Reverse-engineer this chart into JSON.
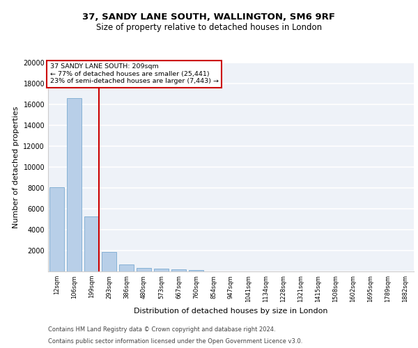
{
  "title1": "37, SANDY LANE SOUTH, WALLINGTON, SM6 9RF",
  "title2": "Size of property relative to detached houses in London",
  "xlabel": "Distribution of detached houses by size in London",
  "ylabel": "Number of detached properties",
  "footer1": "Contains HM Land Registry data © Crown copyright and database right 2024.",
  "footer2": "Contains public sector information licensed under the Open Government Licence v3.0.",
  "annotation_line1": "37 SANDY LANE SOUTH: 209sqm",
  "annotation_line2": "← 77% of detached houses are smaller (25,441)",
  "annotation_line3": "23% of semi-detached houses are larger (7,443) →",
  "bar_color": "#b8cfe8",
  "bar_edge_color": "#7aaad0",
  "marker_line_color": "#cc0000",
  "categories": [
    "12sqm",
    "106sqm",
    "199sqm",
    "293sqm",
    "386sqm",
    "480sqm",
    "573sqm",
    "667sqm",
    "760sqm",
    "854sqm",
    "947sqm",
    "1041sqm",
    "1134sqm",
    "1228sqm",
    "1321sqm",
    "1415sqm",
    "1508sqm",
    "1602sqm",
    "1695sqm",
    "1789sqm",
    "1882sqm"
  ],
  "values": [
    8100,
    16600,
    5300,
    1850,
    700,
    340,
    270,
    190,
    155,
    0,
    0,
    0,
    0,
    0,
    0,
    0,
    0,
    0,
    0,
    0,
    0
  ],
  "ylim": [
    0,
    20000
  ],
  "marker_bar_index": 2,
  "yticks": [
    0,
    2000,
    4000,
    6000,
    8000,
    10000,
    12000,
    14000,
    16000,
    18000,
    20000
  ],
  "background_color": "#eef2f8",
  "grid_color": "#ffffff",
  "title1_fontsize": 9.5,
  "title2_fontsize": 8.5,
  "ylabel_fontsize": 8,
  "xlabel_fontsize": 8,
  "footer_fontsize": 6,
  "tick_fontsize": 7,
  "xtick_fontsize": 6
}
